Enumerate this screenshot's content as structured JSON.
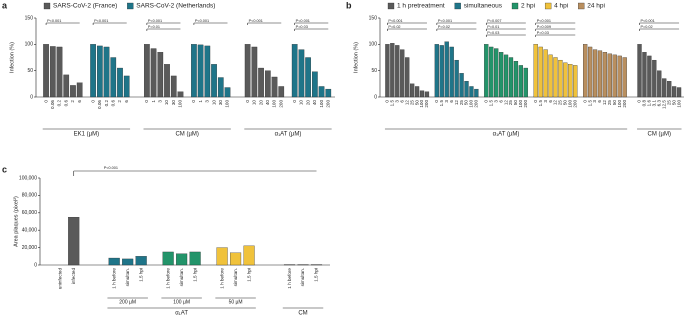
{
  "chart_data": [
    {
      "type": "grouped-bar",
      "panel": "a",
      "ylabel": "Infection (%)",
      "ylim": [
        0,
        150
      ],
      "yticks": [
        0,
        50,
        100,
        150
      ],
      "legend": [
        {
          "name": "SARS-CoV-2 (France)",
          "color": "#5a5a5a"
        },
        {
          "name": "SARS-CoV-2 (Netherlands)",
          "color": "#1f7589"
        }
      ],
      "groups": [
        {
          "label": "EK1 (µM)",
          "sets": [
            {
              "color": "#5a5a5a",
              "categories": [
                "0",
                "0.06",
                "0.2",
                "0.6",
                "2",
                "6"
              ],
              "values": [
                100,
                96,
                95,
                42,
                22,
                27
              ],
              "pvalues": [
                "P<0.001"
              ]
            },
            {
              "color": "#1f7589",
              "categories": [
                "0",
                "0.06",
                "0.2",
                "0.6",
                "2",
                "6"
              ],
              "values": [
                100,
                97,
                95,
                75,
                55,
                40
              ],
              "pvalues": [
                "P<0.001"
              ]
            }
          ]
        },
        {
          "label": "CM (µM)",
          "sets": [
            {
              "color": "#5a5a5a",
              "categories": [
                "0",
                "1",
                "3",
                "10",
                "30",
                "100"
              ],
              "values": [
                100,
                92,
                85,
                62,
                40,
                10
              ],
              "pvalues": [
                "P<0.001",
                "P=0.01"
              ]
            },
            {
              "color": "#1f7589",
              "categories": [
                "0",
                "1",
                "3",
                "10",
                "30",
                "100"
              ],
              "values": [
                100,
                99,
                97,
                62,
                37,
                18
              ],
              "pvalues": [
                "P<0.001"
              ]
            }
          ]
        },
        {
          "label": "α₁AT (µM)",
          "sets": [
            {
              "color": "#5a5a5a",
              "categories": [
                "0",
                "10",
                "20",
                "40",
                "100",
                "200"
              ],
              "values": [
                100,
                95,
                55,
                50,
                38,
                20
              ],
              "pvalues": [
                "P<0.001"
              ]
            },
            {
              "color": "#1f7589",
              "categories": [
                "0",
                "10",
                "20",
                "40",
                "100",
                "200"
              ],
              "values": [
                100,
                90,
                75,
                48,
                20,
                15
              ],
              "pvalues": [
                "P<0.001",
                "P=0.03"
              ]
            }
          ]
        }
      ]
    },
    {
      "type": "grouped-bar",
      "panel": "b",
      "ylabel": "Infection (%)",
      "ylim": [
        0,
        150
      ],
      "yticks": [
        0,
        50,
        100,
        150
      ],
      "legend": [
        {
          "name": "1 h pretreatment",
          "color": "#5a5a5a"
        },
        {
          "name": "simultaneous",
          "color": "#1f7589"
        },
        {
          "name": "2 hpi",
          "color": "#23946a"
        },
        {
          "name": "4 hpi",
          "color": "#f0c23b"
        },
        {
          "name": "24 hpi",
          "color": "#b98f5f"
        }
      ],
      "groups": [
        {
          "label": "α₁AT (µM)",
          "sets": [
            {
              "color": "#5a5a5a",
              "categories": [
                "0",
                "1.5",
                "3",
                "6",
                "12",
                "25",
                "50",
                "100",
                "200"
              ],
              "values": [
                100,
                102,
                98,
                90,
                75,
                25,
                20,
                12,
                10
              ],
              "pvalues": [
                "P<0.001",
                "P=0.02"
              ]
            },
            {
              "color": "#1f7589",
              "categories": [
                "0",
                "1.5",
                "3",
                "6",
                "12",
                "25",
                "50",
                "100",
                "200"
              ],
              "values": [
                100,
                98,
                105,
                95,
                70,
                45,
                30,
                20,
                15
              ],
              "pvalues": [
                "P<0.001",
                "P=0.02"
              ]
            },
            {
              "color": "#23946a",
              "categories": [
                "0",
                "1.5",
                "3",
                "6",
                "12",
                "25",
                "50",
                "100",
                "200"
              ],
              "values": [
                100,
                95,
                92,
                85,
                80,
                75,
                68,
                60,
                55
              ],
              "pvalues": [
                "P=0.007",
                "P=0.01",
                "P=0.03"
              ]
            },
            {
              "color": "#f0c23b",
              "categories": [
                "0",
                "1.5",
                "3",
                "6",
                "12",
                "25",
                "50",
                "100",
                "200"
              ],
              "values": [
                100,
                95,
                90,
                80,
                75,
                70,
                65,
                62,
                60
              ],
              "pvalues": [
                "P<0.001",
                "P=0.009",
                "P=0.03"
              ]
            },
            {
              "color": "#b98f5f",
              "categories": [
                "0",
                "1.5",
                "3",
                "6",
                "12",
                "25",
                "50",
                "100",
                "200"
              ],
              "values": [
                100,
                95,
                90,
                88,
                85,
                82,
                80,
                78,
                75
              ]
            }
          ]
        },
        {
          "label": "CM (µM)",
          "sets": [
            {
              "color": "#5a5a5a",
              "categories": [
                "0",
                "0.8",
                "1.6",
                "3.1",
                "6.3",
                "12.5",
                "25",
                "50",
                "100"
              ],
              "values": [
                100,
                85,
                78,
                70,
                50,
                35,
                30,
                20,
                18
              ],
              "pvalues": [
                "P<0.001",
                "P=0.02"
              ]
            }
          ]
        }
      ]
    },
    {
      "type": "grouped-bar",
      "panel": "c",
      "ylabel": "Area plaques (pixel²)",
      "ylim": [
        0,
        100000
      ],
      "yticks": [
        0,
        {
          "value": 20000,
          "label": "20,000"
        },
        {
          "value": 40000,
          "label": "40,000"
        },
        {
          "value": 60000,
          "label": "60,000"
        },
        {
          "value": 80000,
          "label": "80,000"
        },
        {
          "value": 100000,
          "label": "100,000"
        }
      ],
      "pvalues": [
        "P<0.001"
      ],
      "groups": [
        {
          "sets": [
            {
              "color": "#5a5a5a",
              "categories": [
                "uninfected",
                "infected"
              ],
              "values": [
                0,
                55000
              ]
            }
          ]
        },
        {
          "label": "α₁AT",
          "sets": [
            {
              "label": "200 µM",
              "color": "#1f7589",
              "categories": [
                "1 h before",
                "simultan.",
                "1.5 hpi"
              ],
              "values": [
                8000,
                7000,
                10000
              ]
            },
            {
              "label": "100 µM",
              "color": "#23946a",
              "categories": [
                "1 h before",
                "simultan.",
                "1.5 hpi"
              ],
              "values": [
                15000,
                13000,
                15000
              ]
            },
            {
              "label": "50 µM",
              "color": "#f0c23b",
              "categories": [
                "1 h before",
                "simultan.",
                "1.5 hpi"
              ],
              "values": [
                20000,
                14000,
                22000
              ]
            }
          ]
        },
        {
          "label": "CM",
          "sets": [
            {
              "color": "#5a5a5a",
              "categories": [
                "1 h before",
                "simultan.",
                "1.5 hpi"
              ],
              "values": [
                500,
                500,
                500
              ]
            }
          ]
        }
      ]
    }
  ]
}
